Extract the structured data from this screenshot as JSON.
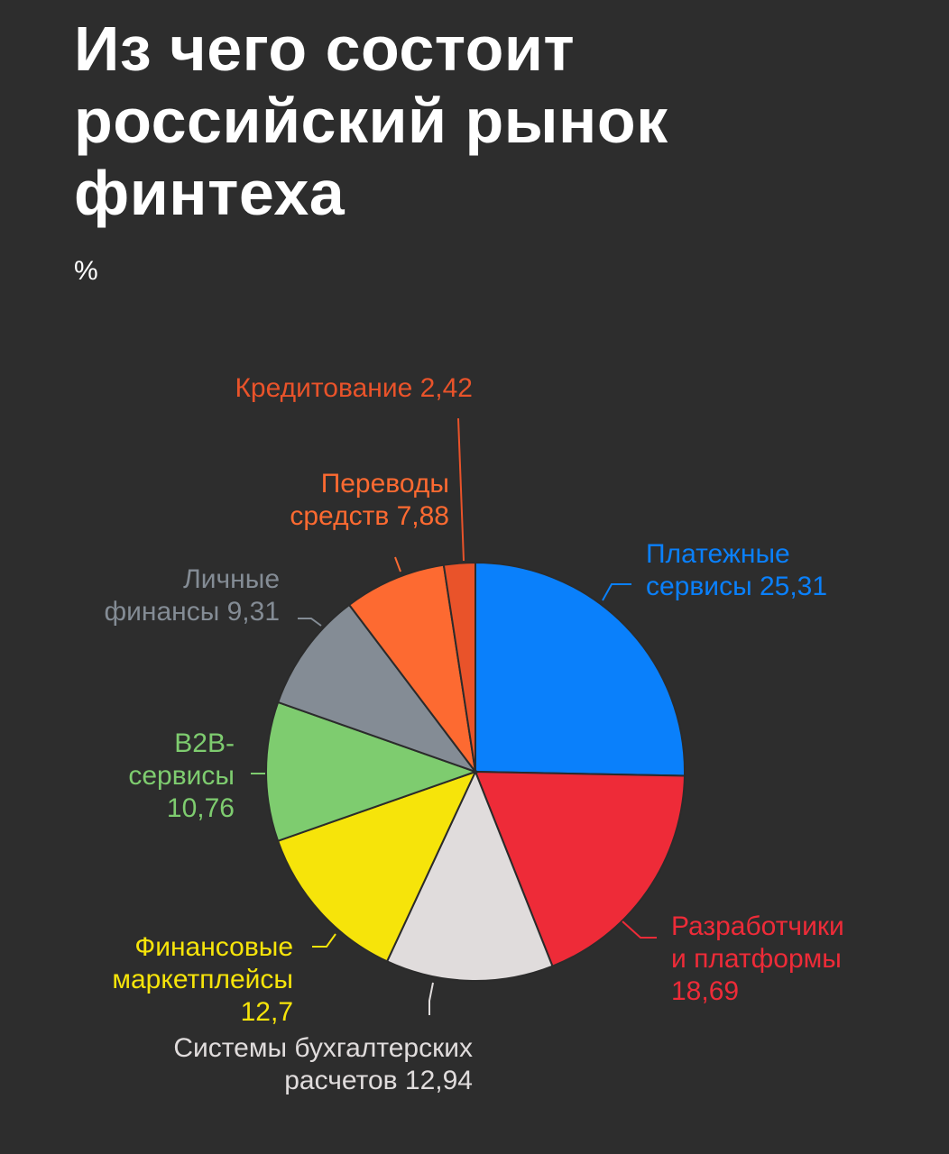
{
  "title_lines": [
    "Из чего состоит",
    "российский рынок",
    "финтеха"
  ],
  "unit": "%",
  "chart_data": {
    "type": "pie",
    "title": "Из чего состоит российский рынок финтеха",
    "unit": "%",
    "slices": [
      {
        "name": "Платежные сервисы",
        "value": 25.31,
        "label_lines": [
          "Платежные",
          "сервисы 25,31"
        ],
        "color": "#0a80fb"
      },
      {
        "name": "Разработчики и платформы",
        "value": 18.69,
        "label_lines": [
          "Разработчики",
          "и платформы",
          "18,69"
        ],
        "color": "#ee2b38"
      },
      {
        "name": "Системы бухгалтерских расчетов",
        "value": 12.94,
        "label_lines": [
          "Системы бухгалтерских",
          "расчетов 12,94"
        ],
        "color": "#e0dcdc"
      },
      {
        "name": "Финансовые маркетплейсы",
        "value": 12.7,
        "label_lines": [
          "Финансовые",
          "маркетплейсы",
          "12,7"
        ],
        "color": "#f6e40a"
      },
      {
        "name": "B2B-сервисы",
        "value": 10.76,
        "label_lines": [
          "B2B-",
          "сервисы",
          "10,76"
        ],
        "color": "#7ecc6f"
      },
      {
        "name": "Личные финансы",
        "value": 9.31,
        "label_lines": [
          "Личные",
          "финансы 9,31"
        ],
        "color": "#848c95"
      },
      {
        "name": "Переводы средств",
        "value": 7.88,
        "label_lines": [
          "Переводы",
          "средств 7,88"
        ],
        "color": "#fd6a31"
      },
      {
        "name": "Кредитование",
        "value": 2.42,
        "label_lines": [
          "Кредитование 2,42"
        ],
        "color": "#e9532a"
      }
    ]
  }
}
